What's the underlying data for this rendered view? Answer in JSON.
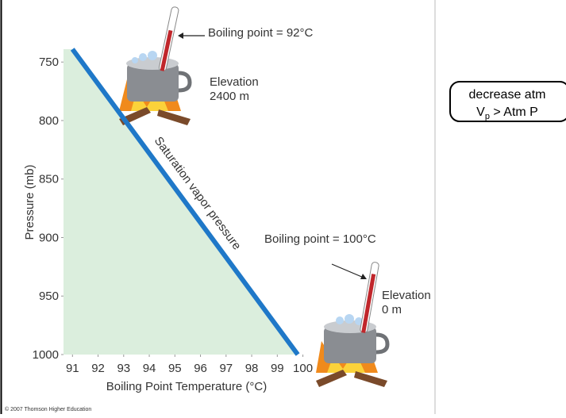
{
  "chart_data": {
    "type": "line",
    "x_label": "Boiling Point Temperature (°C)",
    "y_label": "Pressure (mb)",
    "xlim": [
      90.65,
      100.2
    ],
    "ylim": [
      739,
      1000
    ],
    "xticks": [
      91,
      92,
      93,
      94,
      95,
      96,
      97,
      98,
      99,
      100
    ],
    "yticks": [
      750,
      800,
      850,
      900,
      950,
      1000
    ],
    "y_inverted": true,
    "fill_color": "#dbeedd",
    "series": [
      {
        "name": "Saturation vapor pressure",
        "color": "#1f78c8",
        "x": [
          91.0,
          99.8
        ],
        "y": [
          739,
          1000
        ]
      }
    ],
    "annotations": {
      "high_boiling": "Boiling point = 92°C",
      "high_elevation_label": "Elevation",
      "high_elevation_value": "2400 m",
      "low_boiling": "Boiling point = 100°C",
      "low_elevation_label": "Elevation",
      "low_elevation_value": "0 m",
      "copyright": "© 2007 Thomson Higher Education"
    },
    "callout": {
      "line1": "decrease atm",
      "v": "V",
      "sub": "p",
      "rest": " > Atm P"
    }
  }
}
